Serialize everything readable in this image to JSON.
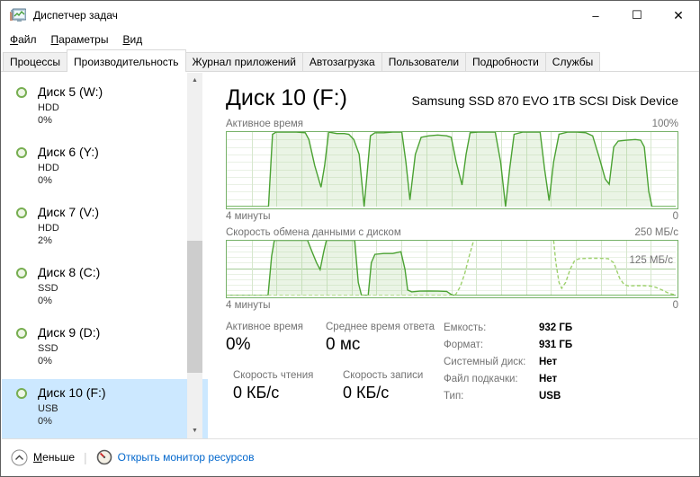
{
  "window": {
    "title": "Диспетчер задач",
    "controls": {
      "minimize": "–",
      "maximize": "☐",
      "close": "✕"
    }
  },
  "menu": [
    {
      "u": "Ф",
      "rest": "айл"
    },
    {
      "u": "П",
      "rest": "араметры"
    },
    {
      "u": "В",
      "rest": "ид"
    }
  ],
  "tabs": [
    {
      "label": "Процессы",
      "selected": false
    },
    {
      "label": "Производительность",
      "selected": true
    },
    {
      "label": "Журнал приложений",
      "selected": false
    },
    {
      "label": "Автозагрузка",
      "selected": false
    },
    {
      "label": "Пользователи",
      "selected": false
    },
    {
      "label": "Подробности",
      "selected": false
    },
    {
      "label": "Службы",
      "selected": false
    }
  ],
  "sidebar": {
    "items": [
      {
        "name": "Диск 5 (W:)",
        "type": "HDD",
        "usage": "0%",
        "selected": false
      },
      {
        "name": "Диск 6 (Y:)",
        "type": "HDD",
        "usage": "0%",
        "selected": false
      },
      {
        "name": "Диск 7 (V:)",
        "type": "HDD",
        "usage": "2%",
        "selected": false
      },
      {
        "name": "Диск 8 (C:)",
        "type": "SSD",
        "usage": "0%",
        "selected": false
      },
      {
        "name": "Диск 9 (D:)",
        "type": "SSD",
        "usage": "0%",
        "selected": false
      },
      {
        "name": "Диск 10 (F:)",
        "type": "USB",
        "usage": "0%",
        "selected": true
      }
    ]
  },
  "main": {
    "title": "Диск 10 (F:)",
    "subtitle": "Samsung SSD 870 EVO 1TB SCSI Disk Device",
    "stats": {
      "blocks": [
        {
          "label": "Активное время",
          "value": "0%"
        },
        {
          "label": "Среднее время ответа",
          "value": "0 мс"
        }
      ],
      "speeds": [
        {
          "label": "Скорость чтения",
          "value": "0 КБ/с",
          "style": "solid"
        },
        {
          "label": "Скорость записи",
          "value": "0 КБ/с",
          "style": "dashed"
        }
      ]
    },
    "details": [
      {
        "label": "Емкость:",
        "value": "932 ГБ"
      },
      {
        "label": "Формат:",
        "value": "931 ГБ"
      },
      {
        "label": "Системный диск:",
        "value": "Нет"
      },
      {
        "label": "Файл подкачки:",
        "value": "Нет"
      },
      {
        "label": "Тип:",
        "value": "USB"
      }
    ]
  },
  "chart_data": [
    {
      "type": "area",
      "title": "Активное время",
      "max_label": "100%",
      "xlabel_left": "4 минуты",
      "xlabel_right": "0",
      "ylim": [
        0,
        100
      ],
      "xrange_minutes": 4,
      "grid": {
        "cols": 18,
        "rows": 10
      },
      "legend_position": "none",
      "series": [
        {
          "name": "active-time",
          "style": "solid",
          "fill": true,
          "points": [
            [
              0,
              0
            ],
            [
              0.093,
              0
            ],
            [
              0.102,
              97
            ],
            [
              0.11,
              100
            ],
            [
              0.155,
              100
            ],
            [
              0.175,
              99
            ],
            [
              0.183,
              90
            ],
            [
              0.196,
              55
            ],
            [
              0.21,
              26
            ],
            [
              0.218,
              55
            ],
            [
              0.227,
              100
            ],
            [
              0.245,
              98
            ],
            [
              0.262,
              98
            ],
            [
              0.272,
              97
            ],
            [
              0.283,
              90
            ],
            [
              0.295,
              70
            ],
            [
              0.306,
              0
            ],
            [
              0.312,
              40
            ],
            [
              0.32,
              95
            ],
            [
              0.33,
              99
            ],
            [
              0.35,
              99
            ],
            [
              0.37,
              100
            ],
            [
              0.39,
              100
            ],
            [
              0.399,
              60
            ],
            [
              0.408,
              9
            ],
            [
              0.42,
              70
            ],
            [
              0.433,
              93
            ],
            [
              0.45,
              95
            ],
            [
              0.47,
              96
            ],
            [
              0.49,
              95
            ],
            [
              0.5,
              93
            ],
            [
              0.511,
              60
            ],
            [
              0.524,
              29
            ],
            [
              0.533,
              70
            ],
            [
              0.542,
              99
            ],
            [
              0.56,
              100
            ],
            [
              0.58,
              100
            ],
            [
              0.598,
              100
            ],
            [
              0.61,
              60
            ],
            [
              0.621,
              0
            ],
            [
              0.63,
              50
            ],
            [
              0.64,
              97
            ],
            [
              0.66,
              100
            ],
            [
              0.68,
              100
            ],
            [
              0.698,
              100
            ],
            [
              0.708,
              50
            ],
            [
              0.718,
              8
            ],
            [
              0.728,
              60
            ],
            [
              0.74,
              97
            ],
            [
              0.76,
              100
            ],
            [
              0.78,
              100
            ],
            [
              0.8,
              99
            ],
            [
              0.815,
              95
            ],
            [
              0.83,
              65
            ],
            [
              0.843,
              37
            ],
            [
              0.852,
              30
            ],
            [
              0.862,
              80
            ],
            [
              0.872,
              88
            ],
            [
              0.89,
              89
            ],
            [
              0.91,
              90
            ],
            [
              0.922,
              89
            ],
            [
              0.93,
              80
            ],
            [
              0.94,
              20
            ],
            [
              0.947,
              0
            ],
            [
              1,
              0
            ]
          ]
        }
      ]
    },
    {
      "type": "area",
      "title": "Скорость обмена данными с диском",
      "max_label": "250 МБ/с",
      "mid_label": "125 МБ/с",
      "xlabel_left": "4 минуты",
      "xlabel_right": "0",
      "ylim": [
        0,
        250
      ],
      "xrange_minutes": 4,
      "grid": {
        "cols": 18,
        "rows": 10
      },
      "legend_position": "none",
      "series": [
        {
          "name": "total-transfer",
          "style": "solid",
          "fill": true,
          "points": [
            [
              0,
              0
            ],
            [
              0.092,
              0
            ],
            [
              0.1,
              180
            ],
            [
              0.106,
              252
            ],
            [
              0.18,
              252
            ],
            [
              0.19,
              200
            ],
            [
              0.2,
              150
            ],
            [
              0.208,
              118
            ],
            [
              0.216,
              200
            ],
            [
              0.222,
              252
            ],
            [
              0.285,
              252
            ],
            [
              0.293,
              60
            ],
            [
              0.3,
              2
            ],
            [
              0.315,
              0
            ],
            [
              0.322,
              150
            ],
            [
              0.33,
              188
            ],
            [
              0.35,
              192
            ],
            [
              0.37,
              192
            ],
            [
              0.388,
              200
            ],
            [
              0.397,
              120
            ],
            [
              0.403,
              25
            ],
            [
              0.412,
              17
            ],
            [
              0.43,
              20
            ],
            [
              0.45,
              21
            ],
            [
              0.47,
              20
            ],
            [
              0.49,
              19
            ],
            [
              0.5,
              5
            ],
            [
              0.507,
              0
            ],
            [
              1,
              0
            ]
          ]
        },
        {
          "name": "write-speed",
          "style": "dashed",
          "fill": false,
          "points": [
            [
              0,
              0
            ],
            [
              0.5,
              0
            ],
            [
              0.51,
              5
            ],
            [
              0.52,
              40
            ],
            [
              0.53,
              100
            ],
            [
              0.54,
              180
            ],
            [
              0.55,
              252
            ],
            [
              0.56,
              265
            ],
            [
              0.72,
              265
            ],
            [
              0.728,
              252
            ],
            [
              0.733,
              150
            ],
            [
              0.74,
              60
            ],
            [
              0.746,
              33
            ],
            [
              0.755,
              60
            ],
            [
              0.765,
              120
            ],
            [
              0.775,
              160
            ],
            [
              0.785,
              168
            ],
            [
              0.81,
              170
            ],
            [
              0.83,
              170
            ],
            [
              0.85,
              168
            ],
            [
              0.862,
              150
            ],
            [
              0.875,
              80
            ],
            [
              0.885,
              50
            ],
            [
              0.895,
              44
            ],
            [
              0.91,
              45
            ],
            [
              0.93,
              45
            ],
            [
              0.945,
              43
            ],
            [
              0.955,
              38
            ],
            [
              0.97,
              25
            ],
            [
              0.985,
              10
            ],
            [
              0.997,
              4
            ]
          ]
        }
      ]
    }
  ],
  "colors": {
    "accent_green": "#4ba233",
    "light_green": "#9ed16d",
    "fill_green": "rgba(103,174,72,0.14)",
    "chart_border": "#77b269",
    "grid_h": "#e9f1e5",
    "grid_v": "#d6e7cd",
    "grid_mid": "#a5cc98",
    "selection_blue": "#cce8ff",
    "link_blue": "#0066cc",
    "label_gray": "#737373"
  },
  "icons": {
    "scroll_up": "▲",
    "scroll_down": "▼"
  },
  "footer": {
    "less": {
      "u": "М",
      "rest": "еньше"
    },
    "separator": "|",
    "resource_link": "Открыть монитор ресурсов"
  }
}
